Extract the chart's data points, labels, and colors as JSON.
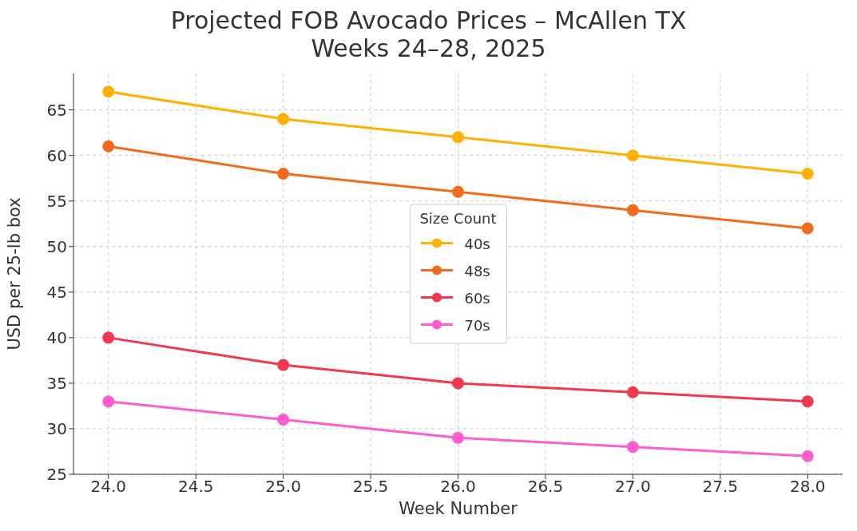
{
  "chart_data": {
    "type": "line",
    "title": "Projected FOB Avocado Prices – McAllen TX\nWeeks 24–28, 2025",
    "xlabel": "Week Number",
    "ylabel": "USD per 25-lb box",
    "legend_title": "Size Count",
    "x": [
      24,
      25,
      26,
      27,
      28
    ],
    "series": [
      {
        "name": "40s",
        "color": "#ffb000",
        "values": [
          67,
          64,
          62,
          60,
          58
        ]
      },
      {
        "name": "48s",
        "color": "#f26b1d",
        "values": [
          61,
          58,
          56,
          54,
          52
        ]
      },
      {
        "name": "60s",
        "color": "#f0384f",
        "values": [
          40,
          37,
          35,
          34,
          33
        ]
      },
      {
        "name": "70s",
        "color": "#ff5ccd",
        "values": [
          33,
          31,
          29,
          28,
          27
        ]
      }
    ],
    "xlim": [
      23.8,
      28.2
    ],
    "xticks": [
      {
        "value": 24,
        "label": "24.0"
      },
      {
        "value": 24.5,
        "label": "24.5"
      },
      {
        "value": 25,
        "label": "25.0"
      },
      {
        "value": 25.5,
        "label": "25.5"
      },
      {
        "value": 26,
        "label": "26.0"
      },
      {
        "value": 26.5,
        "label": "26.5"
      },
      {
        "value": 27,
        "label": "27.0"
      },
      {
        "value": 27.5,
        "label": "27.5"
      },
      {
        "value": 28,
        "label": "28.0"
      }
    ],
    "ylim": [
      25,
      69
    ],
    "yticks": [
      25,
      30,
      35,
      40,
      45,
      50,
      55,
      60,
      65
    ],
    "grid": true,
    "legend": "center",
    "marker": "circle",
    "line_style": "solid"
  }
}
